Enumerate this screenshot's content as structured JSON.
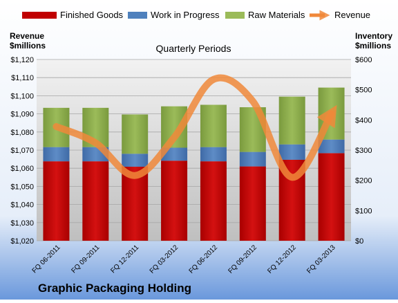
{
  "chart_data": {
    "type": "bar",
    "title": "Quarterly Periods",
    "company": "Graphic Packaging Holding",
    "left_axis_title": [
      "Revenue",
      "$millions"
    ],
    "right_axis_title": [
      "Inventory",
      "$millions"
    ],
    "categories": [
      "FQ 06-2011",
      "FQ 09-2011",
      "FQ 12-2011",
      "FQ 03-2012",
      "FQ 06-2012",
      "FQ 09-2012",
      "FQ 12-2012",
      "FQ 03-2013"
    ],
    "stacked": true,
    "series": [
      {
        "name": "Finished Goods",
        "axis": "right",
        "color": "#C00000",
        "values": [
          263,
          263,
          245,
          265,
          263,
          246,
          268,
          290
        ]
      },
      {
        "name": "Work in Progress",
        "axis": "right",
        "color": "#4F81BD",
        "values": [
          47,
          47,
          43,
          43,
          47,
          48,
          51,
          45
        ]
      },
      {
        "name": "Raw Materials",
        "axis": "right",
        "color": "#8DB04F",
        "values": [
          130,
          130,
          130,
          137,
          140,
          148,
          158,
          172
        ]
      },
      {
        "name": "Revenue",
        "type": "line",
        "axis": "left",
        "color": "#F0883A",
        "values": [
          1083,
          1074,
          1056,
          1077,
          1109,
          1097,
          1055,
          1090
        ]
      }
    ],
    "left_axis": {
      "min": 1020,
      "max": 1120,
      "step": 10,
      "tick_labels": [
        "$1,020",
        "$1,030",
        "$1,040",
        "$1,050",
        "$1,060",
        "$1,070",
        "$1,080",
        "$1,090",
        "$1,100",
        "$1,110",
        "$1,120"
      ]
    },
    "right_axis": {
      "min": 0,
      "max": 600,
      "step": 100,
      "tick_labels": [
        "$0",
        "$100",
        "$200",
        "$300",
        "$400",
        "$500",
        "$600"
      ]
    },
    "legend_position": "top",
    "grid": true
  }
}
